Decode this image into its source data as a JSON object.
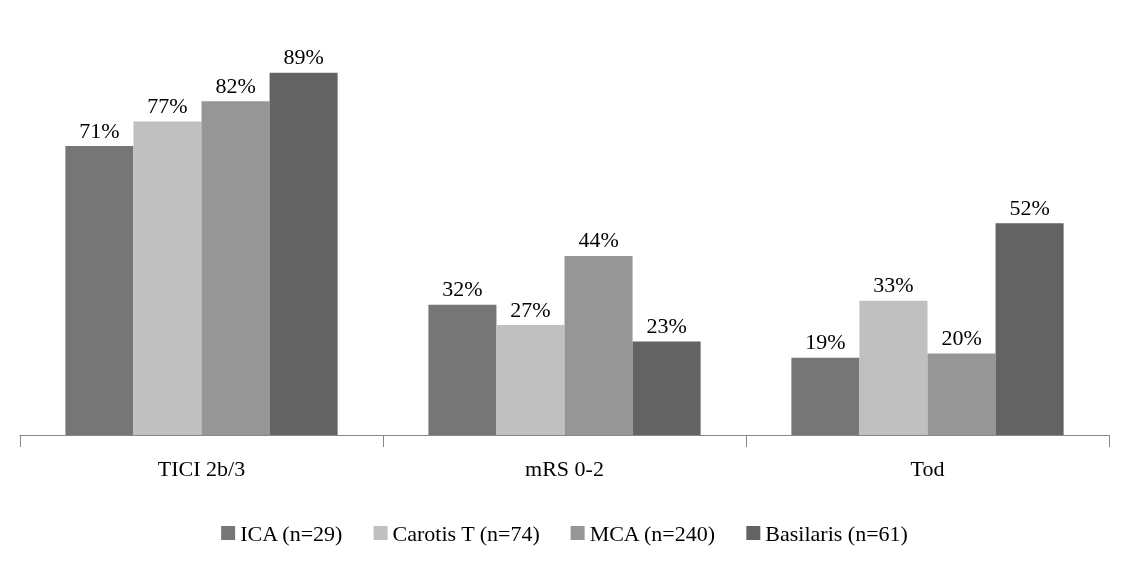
{
  "chart_data": {
    "type": "bar",
    "categories": [
      "TICI 2b/3",
      "mRS 0-2",
      "Tod"
    ],
    "series": [
      {
        "name": "ICA (n=29)",
        "color": "#767676",
        "values": [
          71,
          32,
          19
        ],
        "value_labels": [
          "71%",
          "32%",
          "19%"
        ]
      },
      {
        "name": "Carotis T (n=74)",
        "color": "#c0c0c0",
        "values": [
          77,
          27,
          33
        ],
        "value_labels": [
          "77%",
          "27%",
          "33%"
        ]
      },
      {
        "name": "MCA (n=240)",
        "color": "#969696",
        "values": [
          82,
          44,
          20
        ],
        "value_labels": [
          "82%",
          "44%",
          "20%"
        ]
      },
      {
        "name": "Basilaris (n=61)",
        "color": "#636363",
        "values": [
          89,
          23,
          52
        ],
        "value_labels": [
          "89%",
          "23%",
          "52%"
        ]
      }
    ],
    "legend": "bottom"
  }
}
